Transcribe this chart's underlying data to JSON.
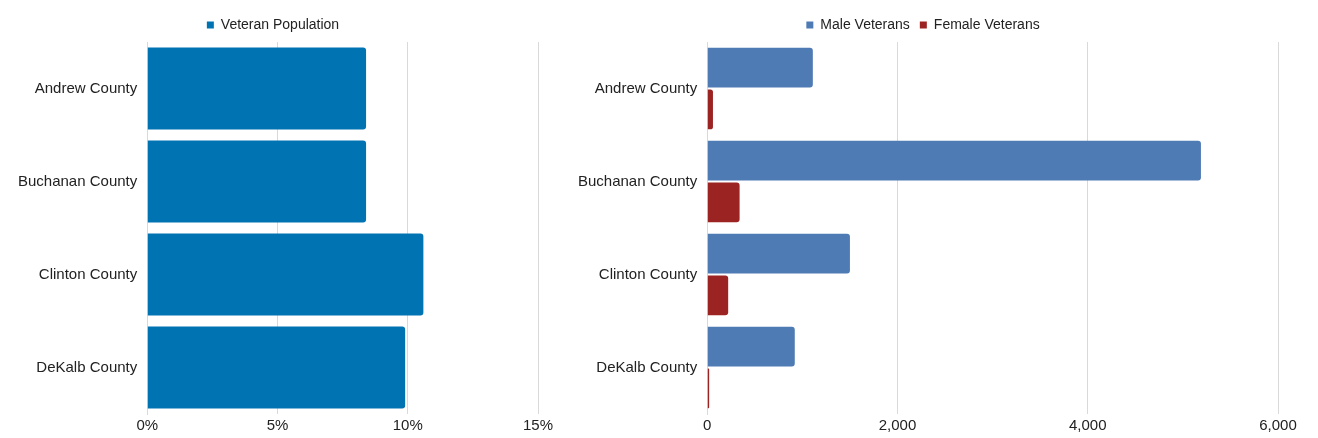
{
  "chart_data": [
    {
      "type": "bar",
      "orientation": "horizontal",
      "categories": [
        "Andrew County",
        "Buchanan County",
        "Clinton County",
        "DeKalb County"
      ],
      "series": [
        {
          "name": "Veteran Population",
          "color": "#0073b3",
          "values": [
            8.4,
            8.4,
            10.6,
            9.9
          ]
        }
      ],
      "xlim": [
        0,
        15
      ],
      "xticks": [
        {
          "value": 0,
          "label": "0%"
        },
        {
          "value": 5,
          "label": "5%"
        },
        {
          "value": 10,
          "label": "10%"
        },
        {
          "value": 15,
          "label": "15%"
        }
      ],
      "grid": "x",
      "legend": "top"
    },
    {
      "type": "bar",
      "orientation": "horizontal",
      "categories": [
        "Andrew County",
        "Buchanan County",
        "Clinton County",
        "DeKalb County"
      ],
      "series": [
        {
          "name": "Male Veterans",
          "color": "#4f7bb5",
          "values": [
            1110,
            5190,
            1500,
            920
          ]
        },
        {
          "name": "Female Veterans",
          "color": "#9b2423",
          "values": [
            60,
            340,
            220,
            20
          ]
        }
      ],
      "xlim": [
        0,
        6000
      ],
      "xticks": [
        0,
        {
          "value": 2000,
          "label": "2,000"
        },
        {
          "value": 4000,
          "label": "4,000"
        },
        {
          "value": 6000,
          "label": "6,000"
        }
      ],
      "grid": "x",
      "legend": "top"
    }
  ]
}
